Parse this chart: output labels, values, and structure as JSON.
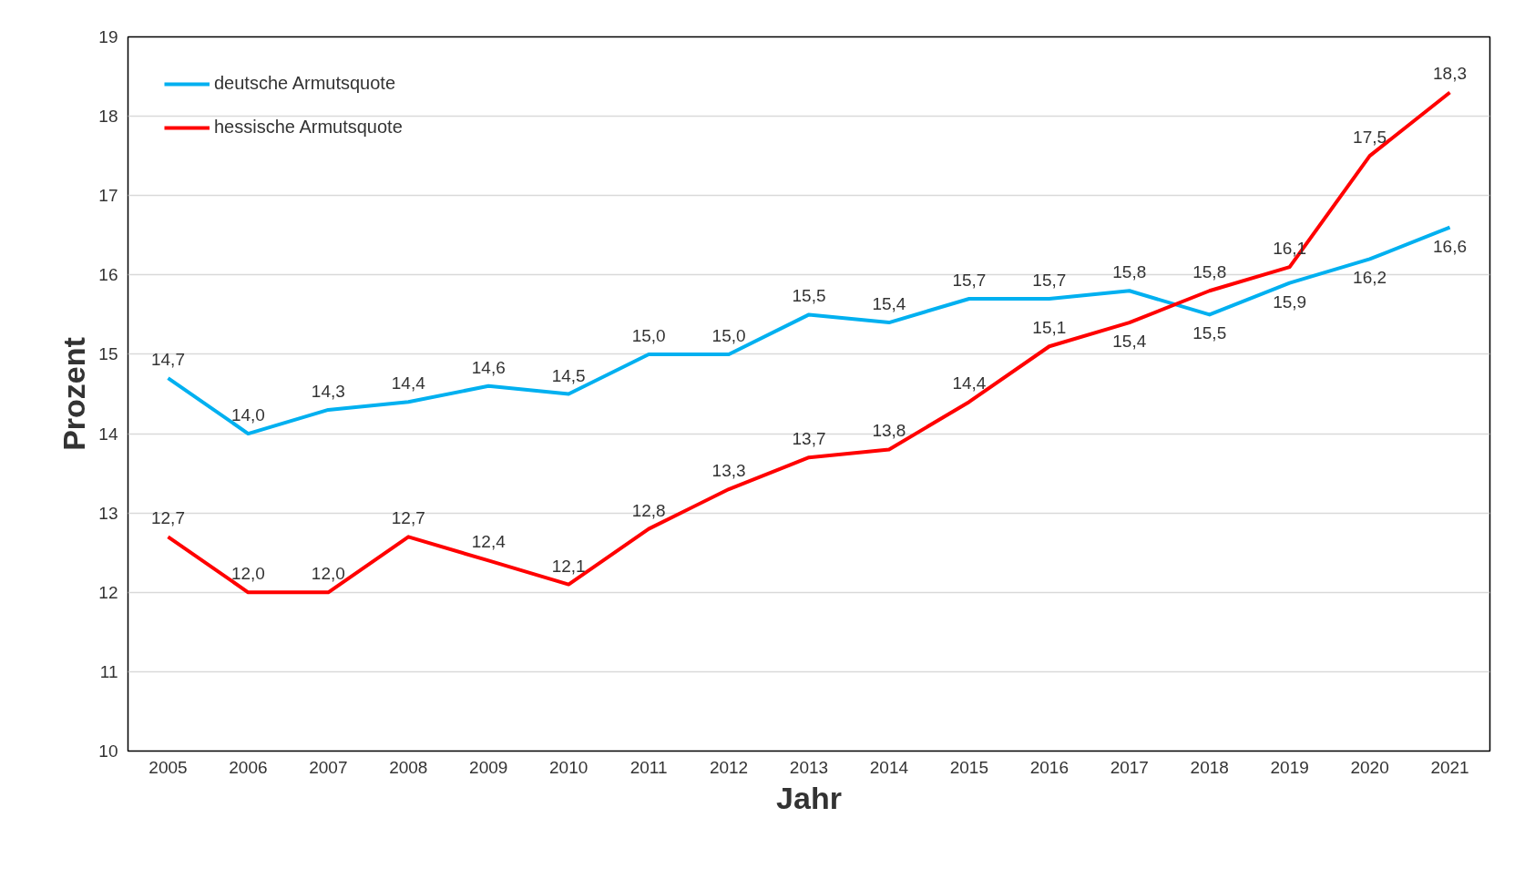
{
  "chart_data": {
    "type": "line",
    "xlabel": "Jahr",
    "ylabel": "Prozent",
    "categories": [
      "2005",
      "2006",
      "2007",
      "2008",
      "2009",
      "2010",
      "2011",
      "2012",
      "2013",
      "2014",
      "2015",
      "2016",
      "2017",
      "2018",
      "2019",
      "2020",
      "2021"
    ],
    "series": [
      {
        "name": "deutsche Armutsquote",
        "color": "#00b0f0",
        "values": [
          14.7,
          14.0,
          14.3,
          14.4,
          14.6,
          14.5,
          15.0,
          15.0,
          15.5,
          15.4,
          15.7,
          15.7,
          15.8,
          15.5,
          15.9,
          16.2,
          16.6
        ],
        "value_labels": [
          "14,7",
          "14,0",
          "14,3",
          "14,4",
          "14,6",
          "14,5",
          "15,0",
          "15,0",
          "15,5",
          "15,4",
          "15,7",
          "15,7",
          "15,8",
          "15,5",
          "15,9",
          "16,2",
          "16,6"
        ]
      },
      {
        "name": "hessische Armutsquote",
        "color": "#ff0000",
        "values": [
          12.7,
          12.0,
          12.0,
          12.7,
          12.4,
          12.1,
          12.8,
          13.3,
          13.7,
          13.8,
          14.4,
          15.1,
          15.4,
          15.8,
          16.1,
          17.5,
          18.3
        ],
        "value_labels": [
          "12,7",
          "12,0",
          "12,0",
          "12,7",
          "12,4",
          "12,1",
          "12,8",
          "13,3",
          "13,7",
          "13,8",
          "14,4",
          "15,1",
          "15,4",
          "15,8",
          "16,1",
          "17,5",
          "18,3"
        ]
      }
    ],
    "ylim": [
      10,
      19
    ],
    "yticks": [
      10,
      11,
      12,
      13,
      14,
      15,
      16,
      17,
      18,
      19
    ],
    "grid": "y",
    "legend": "top left",
    "marker": "none",
    "line_style": "solid"
  }
}
